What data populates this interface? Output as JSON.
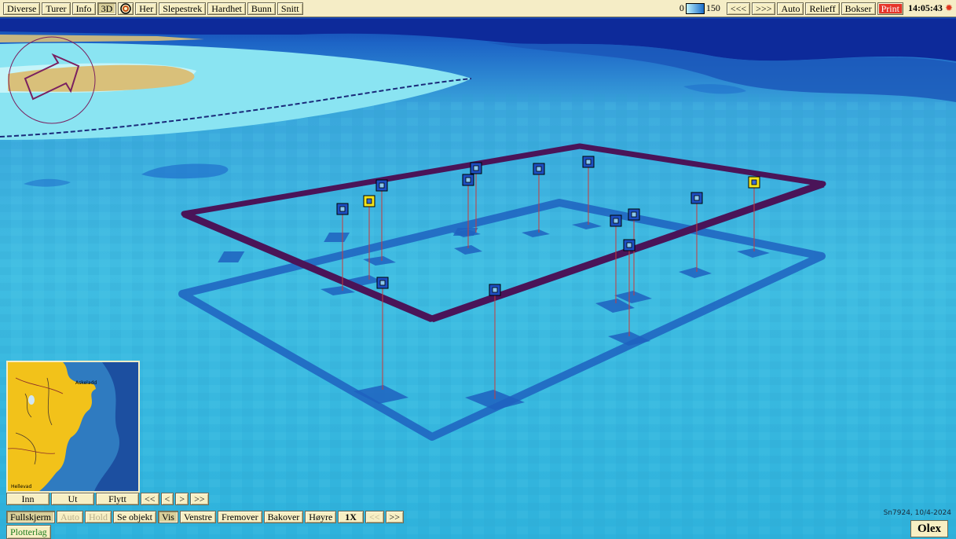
{
  "toolbar": {
    "items": [
      "Diverse",
      "Turer",
      "Info",
      "3D",
      "Her",
      "Slepestrek",
      "Hardhet",
      "Bunn",
      "Snitt"
    ],
    "depth_min": "0",
    "depth_max": "150",
    "nav_prev": "<<<",
    "nav_next": ">>>",
    "auto": "Auto",
    "relief": "Relieff",
    "boxes": "Bokser",
    "print": "Print",
    "time": "14:05:43"
  },
  "minimap_nav": {
    "in": "Inn",
    "out": "Ut",
    "move": "Flytt",
    "first": "<<",
    "prev": "<",
    "next": ">",
    "last": ">>"
  },
  "bottom_bar": {
    "fullscreen": "Fullskjerm",
    "auto": "Auto",
    "hold": "Hold",
    "see_object": "Se objekt",
    "show": "Vis",
    "left": "Venstre",
    "forward": "Fremover",
    "back": "Bakover",
    "right": "Høyre",
    "zoom": "1X",
    "zoom_prev": "<<",
    "zoom_next": ">>"
  },
  "layer_tab": "Plotterlag",
  "version_text": "Sn7924, 10/4-2024",
  "logo": "Olex",
  "minimap_labels": [
    "Askeladd",
    "Hellevad"
  ],
  "colors": {
    "toolbar_bg": "#f5edc6",
    "sea_deep": "#0d2a9a",
    "sea_mid": "#1f6fcc",
    "sea_shallow": "#3ab8dc",
    "land": "#f2c21a",
    "box_outline": "#4a1458",
    "marker_blue": "#1d4fc2",
    "marker_yellow": "#f2e21a"
  },
  "markers": [
    {
      "type": "blue"
    },
    {
      "type": "yellow"
    },
    {
      "type": "blue"
    },
    {
      "type": "blue"
    },
    {
      "type": "blue"
    },
    {
      "type": "blue"
    },
    {
      "type": "blue"
    },
    {
      "type": "blue"
    },
    {
      "type": "blue"
    },
    {
      "type": "blue"
    },
    {
      "type": "blue"
    },
    {
      "type": "yellow"
    },
    {
      "type": "blue"
    },
    {
      "type": "blue"
    }
  ]
}
